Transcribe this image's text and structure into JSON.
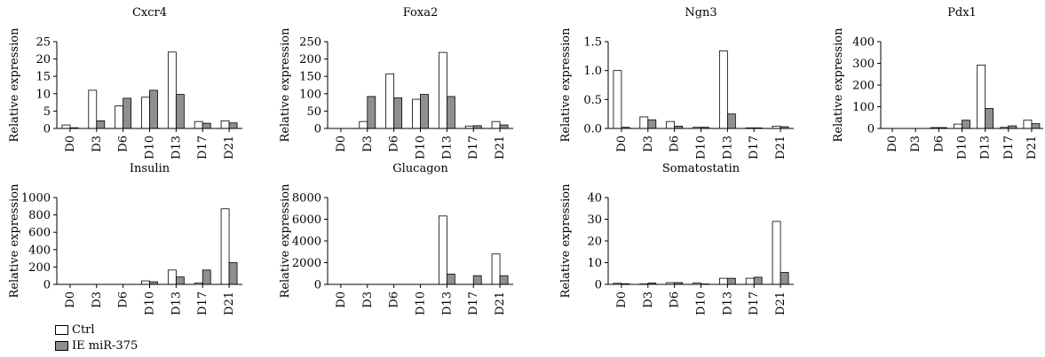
{
  "colors": {
    "ctrl": "#ffffff",
    "ie": "#8f8f8f",
    "axis": "#000000"
  },
  "legend": [
    {
      "label": "Ctrl",
      "color": "#ffffff"
    },
    {
      "label": "IE miR-375",
      "color": "#8f8f8f"
    }
  ],
  "chart_data": [
    {
      "type": "bar",
      "title": "Cxcr4",
      "ylabel": "Relative expression",
      "categories": [
        "D0",
        "D3",
        "D6",
        "D10",
        "D13",
        "D17",
        "D21"
      ],
      "ylim": [
        0,
        25
      ],
      "yticks": [
        "0",
        "5",
        "10",
        "15",
        "20",
        "25"
      ],
      "series": [
        {
          "name": "Ctrl",
          "values": [
            1,
            11,
            6.5,
            9,
            22,
            2,
            2.2
          ]
        },
        {
          "name": "IE miR-375",
          "values": [
            0.2,
            2.2,
            8.7,
            11,
            9.8,
            1.5,
            1.6
          ]
        }
      ]
    },
    {
      "type": "bar",
      "title": "Foxa2",
      "ylabel": "Relative expression",
      "categories": [
        "D0",
        "D3",
        "D6",
        "D10",
        "D13",
        "D17",
        "D21"
      ],
      "ylim": [
        0,
        250
      ],
      "yticks": [
        "0",
        "50",
        "100",
        "150",
        "200",
        "250"
      ],
      "series": [
        {
          "name": "Ctrl",
          "values": [
            0,
            20,
            157,
            84,
            219,
            7,
            20
          ]
        },
        {
          "name": "IE miR-375",
          "values": [
            0,
            92,
            88,
            98,
            92,
            8,
            10
          ]
        }
      ]
    },
    {
      "type": "bar",
      "title": "Ngn3",
      "ylabel": "Relative expression",
      "categories": [
        "D0",
        "D3",
        "D6",
        "D10",
        "D13",
        "D17",
        "D21"
      ],
      "ylim": [
        0,
        1.5
      ],
      "yticks": [
        "0.0",
        "0.5",
        "1.0",
        "1.5"
      ],
      "series": [
        {
          "name": "Ctrl",
          "values": [
            1.0,
            0.2,
            0.12,
            0.02,
            1.34,
            0.01,
            0.04
          ]
        },
        {
          "name": "IE miR-375",
          "values": [
            0.02,
            0.15,
            0.04,
            0.02,
            0.25,
            0.01,
            0.03
          ]
        }
      ]
    },
    {
      "type": "bar",
      "title": "Pdx1",
      "ylabel": "Relative expression",
      "categories": [
        "D0",
        "D3",
        "D6",
        "D10",
        "D13",
        "D17",
        "D21"
      ],
      "ylim": [
        0,
        400
      ],
      "yticks": [
        "0",
        "100",
        "200",
        "300",
        "400"
      ],
      "series": [
        {
          "name": "Ctrl",
          "values": [
            0,
            0,
            4,
            20,
            292,
            5,
            38
          ]
        },
        {
          "name": "IE miR-375",
          "values": [
            0,
            0,
            4,
            38,
            92,
            12,
            22
          ]
        }
      ]
    },
    {
      "type": "bar",
      "title": "Insulin",
      "ylabel": "Relative expression",
      "categories": [
        "D0",
        "D3",
        "D6",
        "D10",
        "D13",
        "D17",
        "D21"
      ],
      "ylim": [
        0,
        1000
      ],
      "yticks": [
        "0",
        "200",
        "400",
        "600",
        "800",
        "1000"
      ],
      "series": [
        {
          "name": "Ctrl",
          "values": [
            0,
            0,
            0,
            40,
            165,
            15,
            870
          ]
        },
        {
          "name": "IE miR-375",
          "values": [
            0,
            0,
            0,
            30,
            85,
            165,
            250
          ]
        }
      ]
    },
    {
      "type": "bar",
      "title": "Glucagon",
      "ylabel": "Relative expression",
      "categories": [
        "D0",
        "D3",
        "D6",
        "D10",
        "D13",
        "D17",
        "D21"
      ],
      "ylim": [
        0,
        8000
      ],
      "yticks": [
        "0",
        "2000",
        "4000",
        "6000",
        "8000"
      ],
      "series": [
        {
          "name": "Ctrl",
          "values": [
            0,
            0,
            0,
            0,
            6300,
            0,
            2800
          ]
        },
        {
          "name": "IE miR-375",
          "values": [
            0,
            0,
            0,
            0,
            950,
            800,
            800
          ]
        }
      ]
    },
    {
      "type": "bar",
      "title": "Somatostatin",
      "ylabel": "Relative expression",
      "categories": [
        "D0",
        "D3",
        "D6",
        "D10",
        "D13",
        "D17",
        "D21"
      ],
      "ylim": [
        0,
        40
      ],
      "yticks": [
        "0",
        "10",
        "20",
        "30",
        "40"
      ],
      "series": [
        {
          "name": "Ctrl",
          "values": [
            0.5,
            0.2,
            0.8,
            0.6,
            2.8,
            2.8,
            29
          ]
        },
        {
          "name": "IE miR-375",
          "values": [
            0.3,
            0.6,
            0.8,
            0.2,
            2.8,
            3.3,
            5.5
          ]
        }
      ]
    }
  ]
}
